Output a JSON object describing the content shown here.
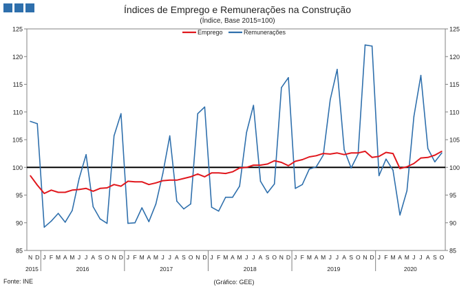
{
  "header": {
    "title": "Índices de Emprego e Remunerações na Construção",
    "subtitle": "(Índice, Base 2015=100)"
  },
  "footer": {
    "source": "Fonte: INE",
    "credit": "(Gráfico: GEE)"
  },
  "colors": {
    "emprego": "#e0161c",
    "remuneracoes": "#2e6fac",
    "reference_line": "#000000",
    "logo": "#2e6fac"
  },
  "chart_data": {
    "type": "line",
    "title": "Índices de Emprego e Remunerações na Construção",
    "subtitle": "(Índice, Base 2015=100)",
    "ylim": [
      85,
      125
    ],
    "yticks": [
      85,
      90,
      95,
      100,
      105,
      110,
      115,
      120,
      125
    ],
    "secondary_axis_labels": true,
    "grid": false,
    "legend": "top-center",
    "reference_line": 100,
    "month_labels": [
      "N",
      "D",
      "J",
      "F",
      "M",
      "A",
      "M",
      "J",
      "J",
      "A",
      "S",
      "O",
      "N",
      "D",
      "J",
      "F",
      "M",
      "A",
      "M",
      "J",
      "J",
      "A",
      "S",
      "O",
      "N",
      "D",
      "J",
      "F",
      "M",
      "A",
      "M",
      "J",
      "J",
      "A",
      "S",
      "O",
      "N",
      "D",
      "J",
      "F",
      "M",
      "A",
      "M",
      "J",
      "J",
      "A",
      "S",
      "O",
      "N",
      "D",
      "J",
      "F",
      "M",
      "A",
      "M",
      "J",
      "J",
      "A",
      "S",
      "O"
    ],
    "year_labels": [
      {
        "label": "2015",
        "from": 0,
        "to": 1
      },
      {
        "label": "2016",
        "from": 2,
        "to": 13
      },
      {
        "label": "2017",
        "from": 14,
        "to": 25
      },
      {
        "label": "2018",
        "from": 26,
        "to": 37
      },
      {
        "label": "2019",
        "from": 38,
        "to": 49
      },
      {
        "label": "2020",
        "from": 50,
        "to": 59
      }
    ],
    "series": [
      {
        "name": "Emprego",
        "values": [
          98.5,
          96.8,
          95.3,
          95.9,
          95.5,
          95.5,
          95.9,
          96.0,
          96.2,
          95.7,
          96.2,
          96.3,
          96.9,
          96.6,
          97.5,
          97.4,
          97.4,
          96.9,
          97.2,
          97.6,
          97.7,
          97.7,
          98.0,
          98.3,
          98.8,
          98.3,
          99.0,
          99.0,
          98.9,
          99.2,
          99.9,
          100.0,
          100.4,
          100.4,
          100.6,
          101.2,
          100.9,
          100.3,
          101.1,
          101.4,
          101.9,
          102.1,
          102.5,
          102.4,
          102.6,
          102.3,
          102.6,
          102.6,
          102.9,
          101.8,
          102.0,
          102.7,
          102.5,
          99.8,
          100.1,
          100.7,
          101.7,
          101.8,
          102.2,
          102.9
        ]
      },
      {
        "name": "Remunerações",
        "values": [
          108.3,
          107.9,
          89.2,
          90.3,
          91.7,
          90.1,
          92.2,
          98.0,
          102.3,
          92.9,
          90.7,
          89.9,
          105.7,
          109.7,
          89.9,
          90.0,
          92.7,
          90.2,
          93.4,
          98.9,
          105.7,
          93.9,
          92.5,
          93.4,
          109.7,
          110.9,
          92.8,
          92.1,
          94.6,
          94.6,
          96.6,
          106.3,
          111.2,
          97.5,
          95.4,
          97.0,
          114.4,
          116.2,
          96.2,
          96.9,
          99.7,
          100.1,
          102.2,
          112.2,
          117.7,
          103.2,
          99.9,
          102.4,
          122.1,
          121.9,
          98.5,
          101.5,
          99.5,
          91.4,
          95.8,
          109.2,
          116.6,
          103.4,
          101.0,
          102.6
        ]
      }
    ]
  }
}
